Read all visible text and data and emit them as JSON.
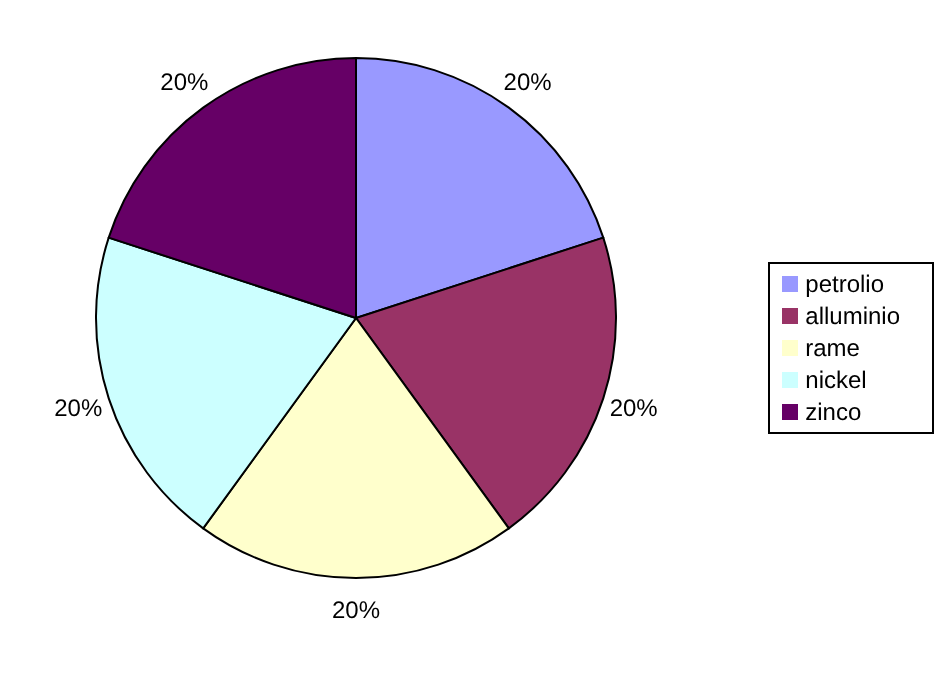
{
  "chart_data": {
    "type": "pie",
    "categories": [
      "petrolio",
      "alluminio",
      "rame",
      "nickel",
      "zinco"
    ],
    "values": [
      20,
      20,
      20,
      20,
      20
    ],
    "value_labels": [
      "20%",
      "20%",
      "20%",
      "20%",
      "20%"
    ],
    "colors": [
      "#9999ff",
      "#993366",
      "#ffffcc",
      "#ccffff",
      "#660066"
    ],
    "legend": "right"
  }
}
